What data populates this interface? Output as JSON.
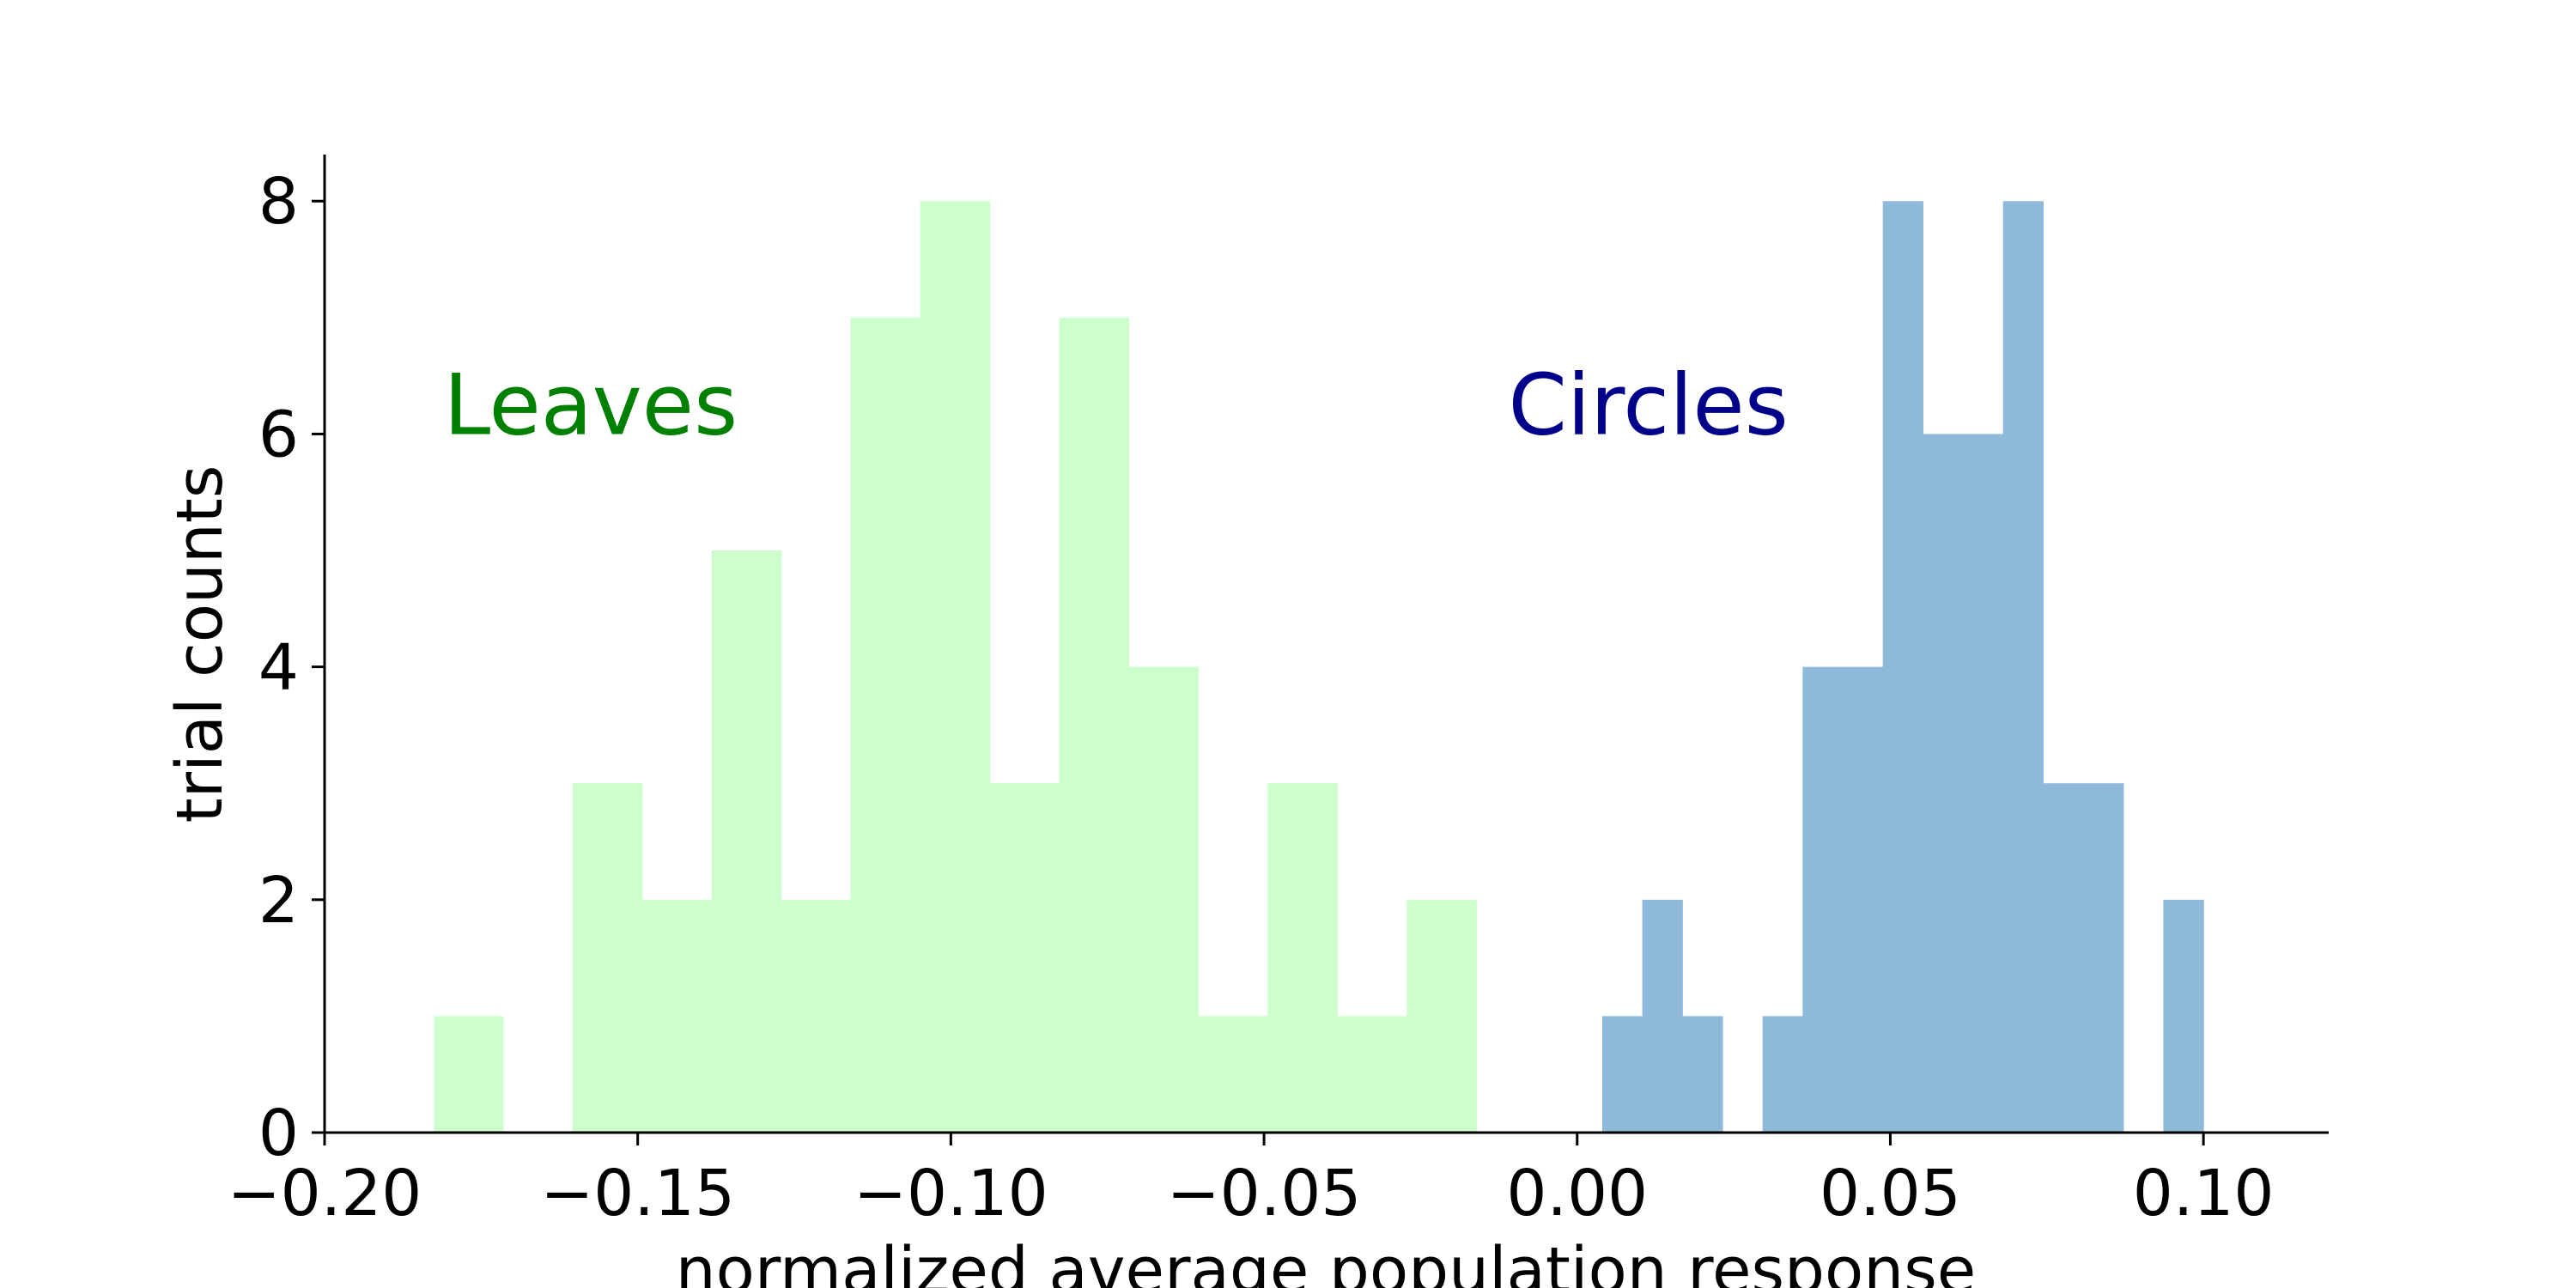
{
  "chart_data": {
    "type": "bar",
    "title": "",
    "xlabel": "normalized average population response",
    "ylabel": "trial counts",
    "xlim": [
      -0.2,
      0.12
    ],
    "ylim": [
      0,
      8.4
    ],
    "xticks": [
      -0.2,
      -0.15,
      -0.1,
      -0.05,
      0.0,
      0.05,
      0.1
    ],
    "xtick_labels": [
      "−0.20",
      "−0.15",
      "−0.10",
      "−0.05",
      "0.00",
      "0.05",
      "0.10"
    ],
    "yticks": [
      0,
      2,
      4,
      6,
      8
    ],
    "ytick_labels": [
      "0",
      "2",
      "4",
      "6",
      "8"
    ],
    "grid": false,
    "series": [
      {
        "name": "Leaves",
        "color": "#ccffcc",
        "bins": [
          {
            "x0": -0.1825,
            "x1": -0.1715,
            "count": 1
          },
          {
            "x0": -0.1715,
            "x1": -0.1604,
            "count": 0
          },
          {
            "x0": -0.1604,
            "x1": -0.1493,
            "count": 3
          },
          {
            "x0": -0.1493,
            "x1": -0.1382,
            "count": 2
          },
          {
            "x0": -0.1382,
            "x1": -0.1271,
            "count": 5
          },
          {
            "x0": -0.1271,
            "x1": -0.116,
            "count": 2
          },
          {
            "x0": -0.116,
            "x1": -0.1049,
            "count": 7
          },
          {
            "x0": -0.1049,
            "x1": -0.0938,
            "count": 8
          },
          {
            "x0": -0.0938,
            "x1": -0.0827,
            "count": 3
          },
          {
            "x0": -0.0827,
            "x1": -0.0716,
            "count": 7
          },
          {
            "x0": -0.0716,
            "x1": -0.0605,
            "count": 4
          },
          {
            "x0": -0.0605,
            "x1": -0.0494,
            "count": 1
          },
          {
            "x0": -0.0494,
            "x1": -0.0383,
            "count": 3
          },
          {
            "x0": -0.0383,
            "x1": -0.0272,
            "count": 1
          },
          {
            "x0": -0.0272,
            "x1": -0.0161,
            "count": 2
          }
        ]
      },
      {
        "name": "Circles",
        "color": "#8fb9d9",
        "bins": [
          {
            "x0": 0.004,
            "x1": 0.0104,
            "count": 1
          },
          {
            "x0": 0.0104,
            "x1": 0.0168,
            "count": 2
          },
          {
            "x0": 0.0168,
            "x1": 0.0232,
            "count": 1
          },
          {
            "x0": 0.0232,
            "x1": 0.0296,
            "count": 0
          },
          {
            "x0": 0.0296,
            "x1": 0.036,
            "count": 1
          },
          {
            "x0": 0.036,
            "x1": 0.0424,
            "count": 4
          },
          {
            "x0": 0.0424,
            "x1": 0.0488,
            "count": 4
          },
          {
            "x0": 0.0488,
            "x1": 0.0552,
            "count": 8
          },
          {
            "x0": 0.0552,
            "x1": 0.0616,
            "count": 6
          },
          {
            "x0": 0.0616,
            "x1": 0.068,
            "count": 6
          },
          {
            "x0": 0.068,
            "x1": 0.0744,
            "count": 8
          },
          {
            "x0": 0.0744,
            "x1": 0.0808,
            "count": 3
          },
          {
            "x0": 0.0808,
            "x1": 0.0872,
            "count": 3
          },
          {
            "x0": 0.0872,
            "x1": 0.0936,
            "count": 0
          },
          {
            "x0": 0.0936,
            "x1": 0.1,
            "count": 2
          }
        ]
      }
    ],
    "annotations": [
      {
        "text": "Leaves",
        "color": "#008000",
        "x": -0.181,
        "y": 6.0
      },
      {
        "text": "Circles",
        "color": "#00008b",
        "x": -0.011,
        "y": 6.0
      }
    ]
  }
}
